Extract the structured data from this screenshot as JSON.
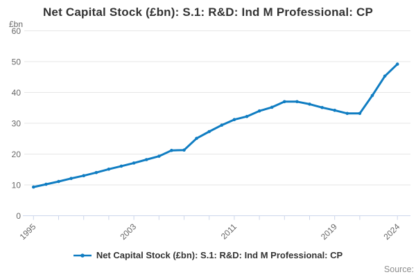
{
  "header": {
    "title": "Net Capital Stock (£bn): S.1: R&D: Ind M Professional: CP"
  },
  "legend": {
    "label": "Net Capital Stock (£bn): S.1: R&D: Ind M Professional: CP"
  },
  "source": {
    "label": "Source:"
  },
  "chart_data": {
    "type": "line",
    "title": "Net Capital Stock (£bn): S.1: R&D: Ind M Professional: CP",
    "ylabel": "£bn",
    "xlabel": "",
    "x": [
      1995,
      1996,
      1997,
      1998,
      1999,
      2000,
      2001,
      2002,
      2003,
      2004,
      2005,
      2006,
      2007,
      2008,
      2009,
      2010,
      2011,
      2012,
      2013,
      2014,
      2015,
      2016,
      2017,
      2018,
      2019,
      2020,
      2021,
      2022,
      2023,
      2024
    ],
    "series": [
      {
        "name": "Net Capital Stock (£bn): S.1: R&D: Ind M Professional: CP",
        "values": [
          9.3,
          10.2,
          11.1,
          12.1,
          13.0,
          14.0,
          15.1,
          16.1,
          17.1,
          18.2,
          19.3,
          21.2,
          21.3,
          25.1,
          27.3,
          29.4,
          31.2,
          32.2,
          34.0,
          35.2,
          37.0,
          37.0,
          36.2,
          35.1,
          34.2,
          33.2,
          33.2,
          39.0,
          45.3,
          49.2
        ]
      }
    ],
    "ylim": [
      0,
      60
    ],
    "y_ticks": [
      0,
      10,
      20,
      30,
      40,
      50,
      60
    ],
    "x_tick_years": [
      1995,
      1997,
      1999,
      2001,
      2003,
      2005,
      2007,
      2009,
      2011,
      2013,
      2015,
      2017,
      2019,
      2021,
      2024
    ],
    "x_label_years": [
      1995,
      2003,
      2011,
      2019,
      2024
    ],
    "grid": true,
    "legend_position": "bottom",
    "colors": {
      "line": "#107dc2",
      "grid": "#e6e6e6",
      "axis": "#ccd6eb",
      "tick_label": "#666666",
      "title": "#333333"
    }
  }
}
